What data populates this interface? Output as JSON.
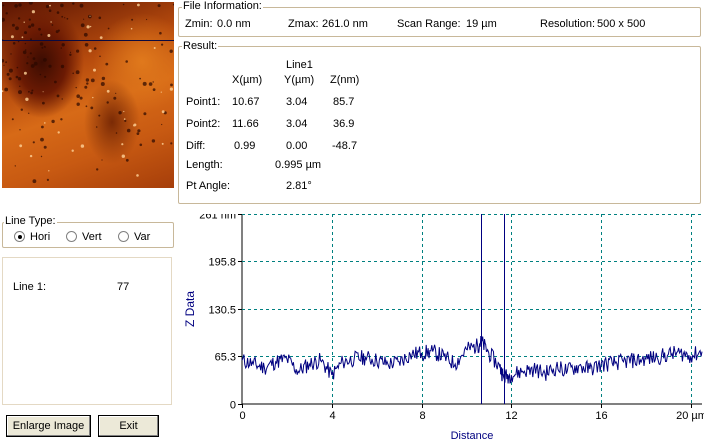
{
  "file_info": {
    "title": "File Information:",
    "zmin_label": "Zmin:",
    "zmin_value": "0.0 nm",
    "zmax_label": "Zmax:",
    "zmax_value": "261.0 nm",
    "scan_range_label": "Scan Range:",
    "scan_range_value": "19 µm",
    "resolution_label": "Resolution:",
    "resolution_value": "500 x 500"
  },
  "result": {
    "title": "Result:",
    "line_header": "Line1",
    "col_x": "X(µm)",
    "col_y": "Y(µm)",
    "col_z": "Z(nm)",
    "rows": [
      {
        "label": "Point1:",
        "x": "10.67",
        "y": "3.04",
        "z": "85.7"
      },
      {
        "label": "Point2:",
        "x": "11.66",
        "y": "3.04",
        "z": "36.9"
      },
      {
        "label": "Diff:",
        "x": "0.99",
        "y": "0.00",
        "z": "-48.7"
      }
    ],
    "length_label": "Length:",
    "length_value": "0.995 µm",
    "angle_label": "Pt Angle:",
    "angle_value": "2.81°"
  },
  "line_type": {
    "title": "Line Type:",
    "options": [
      "Hori",
      "Vert",
      "Var"
    ],
    "selected": "Hori"
  },
  "line_list": {
    "label": "Line 1:",
    "value": "77"
  },
  "buttons": {
    "enlarge": "Enlarge Image",
    "exit": "Exit"
  },
  "colors": {
    "plot_line": "#000080",
    "grid": "#008080",
    "group_border": "#c8b89a"
  },
  "chart_data": {
    "type": "line",
    "xlabel": "Distance",
    "ylabel": "Z Data",
    "x_unit": "µm",
    "y_unit": "nm",
    "xlim": [
      0,
      20.5
    ],
    "ylim": [
      0,
      261
    ],
    "x_ticks": [
      0,
      4,
      8,
      12,
      16,
      20
    ],
    "x_tick_labels": [
      "0",
      "4",
      "8",
      "12",
      "16",
      "20 µm"
    ],
    "y_ticks": [
      0,
      65.3,
      130.5,
      195.8,
      261
    ],
    "y_tick_labels": [
      "0",
      "65.3",
      "130.5",
      "195.8",
      "261 nm"
    ],
    "grid": true,
    "cursors": [
      10.67,
      11.66
    ],
    "series": [
      {
        "x": [
          0,
          0.5,
          1,
          1.5,
          2,
          2.5,
          3,
          3.5,
          4,
          4.5,
          5,
          5.5,
          6,
          6.5,
          7,
          7.5,
          8,
          8.5,
          9,
          9.5,
          10,
          10.5,
          10.67,
          11,
          11.5,
          11.66,
          12,
          12.5,
          13,
          13.5,
          14,
          14.5,
          15,
          15.5,
          16,
          16.5,
          17,
          17.5,
          18,
          18.5,
          19,
          19.5,
          20,
          20.5
        ],
        "y": [
          60,
          55,
          50,
          58,
          62,
          45,
          55,
          60,
          40,
          58,
          62,
          64,
          60,
          55,
          58,
          68,
          70,
          72,
          65,
          55,
          75,
          80,
          85.7,
          70,
          50,
          36.9,
          40,
          45,
          48,
          42,
          50,
          46,
          52,
          48,
          54,
          56,
          58,
          60,
          62,
          64,
          68,
          70,
          66,
          72
        ]
      }
    ]
  }
}
